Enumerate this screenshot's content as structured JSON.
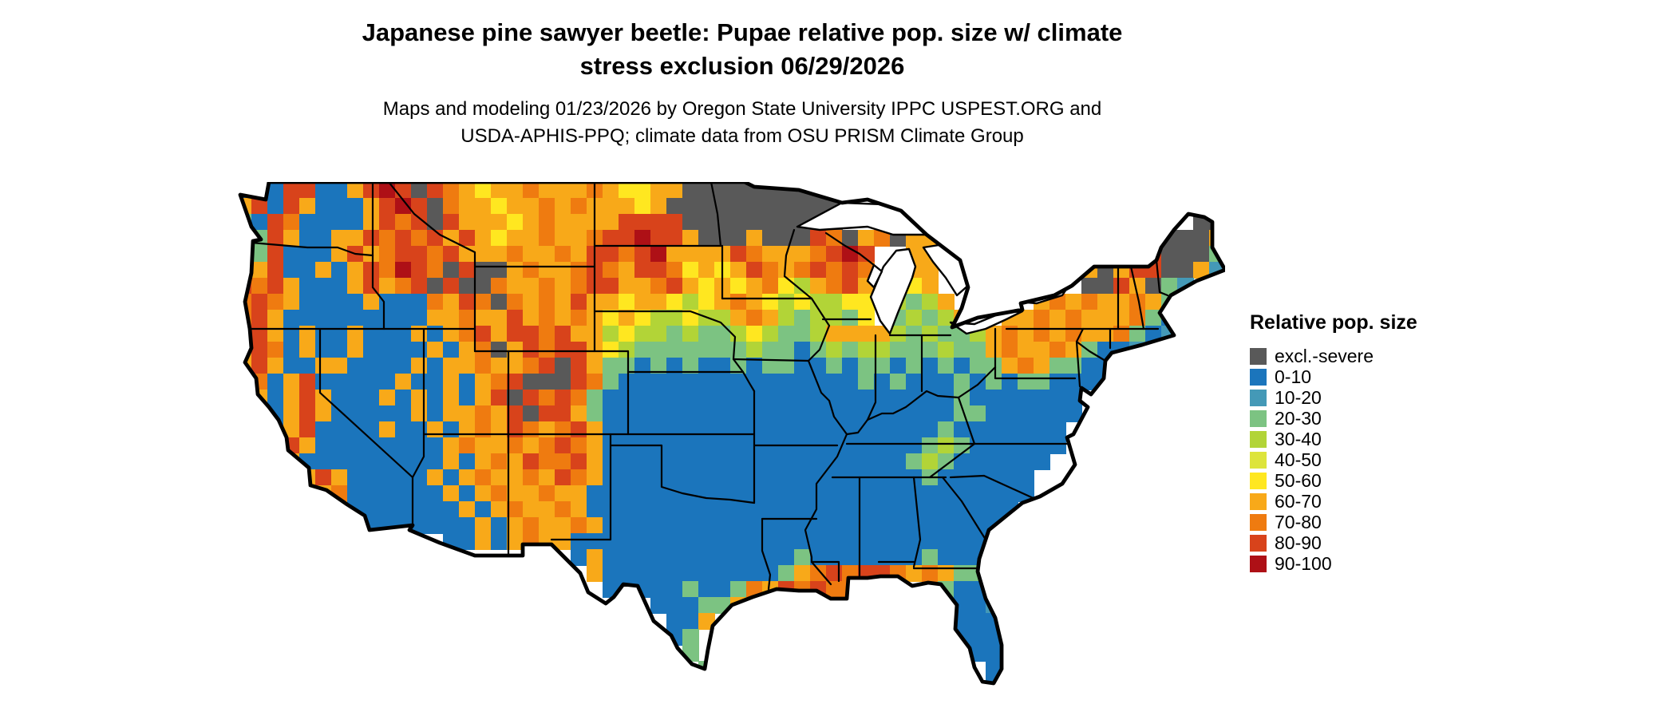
{
  "title": {
    "line1": "Japanese pine sawyer beetle: Pupae relative pop. size w/ climate",
    "line2": "stress exclusion 06/29/2026"
  },
  "subtitle": {
    "line1": "Maps and modeling 01/23/2026 by Oregon State University IPPC USPEST.ORG and",
    "line2": "USDA-APHIS-PPQ; climate data from OSU PRISM Climate Group"
  },
  "legend": {
    "title": "Relative pop. size",
    "items": [
      {
        "label": "excl.-severe",
        "color": "#595959"
      },
      {
        "label": "0-10",
        "color": "#1b75bc"
      },
      {
        "label": "10-20",
        "color": "#4499b7"
      },
      {
        "label": "20-30",
        "color": "#7cc382"
      },
      {
        "label": "30-40",
        "color": "#b2d437"
      },
      {
        "label": "40-50",
        "color": "#dde43b"
      },
      {
        "label": "50-60",
        "color": "#ffe720"
      },
      {
        "label": "60-70",
        "color": "#f8a919"
      },
      {
        "label": "70-80",
        "color": "#ef7b10"
      },
      {
        "label": "80-90",
        "color": "#d8431b"
      },
      {
        "label": "90-100",
        "color": "#ae1016"
      }
    ]
  },
  "map": {
    "background": "#ffffff",
    "outline_color": "#000000",
    "palette": {
      "X": "#595959",
      "B": "#1b75bc",
      "T": "#4499b7",
      "g": "#7cc382",
      "Y": "#b2d437",
      "E": "#dde43b",
      "L": "#ffe720",
      "O": "#f8a919",
      "o": "#ef7b10",
      "R": "#d8431b",
      "r": "#ae1016"
    },
    "raster_rows": [
      "BgBRRBBORrRXRoOLOOoOOOoOLLOOXXXXXXXXXX........................",
      "ORBROBBBORrRXoOOLOOoOoOOOLOXXXXXXXXXXX........................",
      "gBRoBBBBORoRXROOOLOoOOOORRRRXXXXXXXXXX......................XX",
      "ogROBBOORoRoROROLOOoOOoRRrRROXXXOXXXRoXOoXOO..............XXXO",
      "ogRBBBOROoRRoROOOoOOoORRoRrOOOORoOOOoRrR..OO...........ORRXXXg",
      "RORBBOBORorRoXRXXOoOOoRoORRoLOLORoOoRoRo.ROO........gOXORRXXOT",
      "RoROBBBOROoRXRXXoOOoOoRROOoROLOLOoLYOoRO.OLO.........XXROXgT..",
      "oRoOBBBBOBBBoORoXoOoOROOLOOLYLOoOLYLYYLL.YgYO.....OoOoOOoOg...",
      "oROBBBBBBBBBOOoOOROoOoOLOLYYLYYOoOYgYYgL.gYgYO..OOoOoOOOogBT..",
      "gROBOBBOBBBOBOoRORRoROOYLYYgYggYLYggYOOOOYgYggYOoOoOoOOogBT...",
      "ORoBOBBOBBBBOBOoXORoRROLYgggggggYggBgYgYYgggYggOoOOoOgBBT.....",
      "OROBBOOBBBBOBOOoOOoRXROggBgBgBBgBggBBgBggBgBgBggOoOggBBB......",
      "OoBORBBBBBOBBOBOoRXXXRogBBBBBBBBBBBBBBBgBgBBBgBgBggBBBB.......",
      "oOBOROBBBOBOBOBORXRoRogBBBBBBBBBBBBBBBBBBBBBBgBBBBBBB........",
      "OoBOROBBBBBOBOOoORXRROgBBBBBBBBBBBBBBBBBBBBBBggBBBBBB........",
      "oBBORBBBBOBBOBOoORoOoROBBBBBBBBBBBBBBBBBBBBBgBBBBBBB.........",
      "BOoROBBBBBBBBOoOOoOoRoOBBBBBBBBBBBBBBBBBBBBgYgBBBBBB.........",
      "BoOOBBBBBBBBBOBOoORooROBBBBBBBBBBBBBBBBBBBgYgBBBBBB..........",
      "....OROBBBBBOBOoOOoORoOBBBBBBBBBBBBBBBBBBBBgBBBBBB...........",
      ".....OoBBBBBBOBOoOOoOOBBBBBBBBBBBBBBBBBBBBBBBBBBBB...........",
      "......OBBBBBBBOBOoOOoOBBBBBBBBBBBBBBBBBBBBBBBBBBB............",
      ".......OBBBBBBBOBOoOOoOBBBBBBBBBBBBBBBBBBBBBBBBB.............",
      "........BB...BBOBOoOOBBBBBBBBBBBBBBBBBBBBBBBBBBB.............",
      ".....................BOBBBBBBBBBBBBgBBBBBBBgBBB...............",
      "......................OBBBBBBBBBBBgOoRoRRoOoOgg...............",
      ".......................BBBBBgBBgoORoRoo.....gBB...............",
      "..........................BBBggO.............BBT..............",
      "...........................BBO...............BBB..............",
      "...........................Bg................BBB..............",
      "............................g.................BB..............",
      ".............................g.................B..............",
      "...............................................B.............."
    ]
  }
}
